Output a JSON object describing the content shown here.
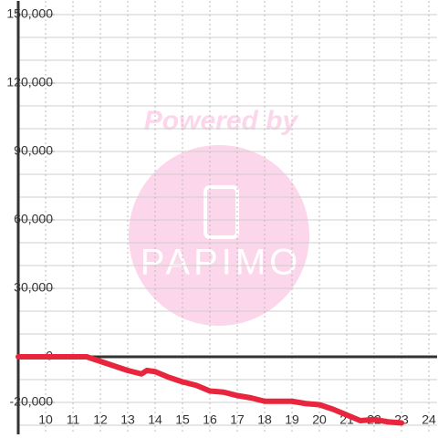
{
  "chart_data": {
    "type": "line",
    "watermark": {
      "title": "Powered by",
      "brand": "PAPIMO"
    },
    "x": [
      9,
      11.5,
      12,
      12.5,
      13,
      13.5,
      13.7,
      14,
      14.5,
      15,
      15.5,
      16,
      16.5,
      17,
      17.5,
      18,
      18.5,
      19,
      19.5,
      20,
      20.5,
      21,
      21.5,
      22,
      22.5,
      23
    ],
    "series": [
      {
        "color": "#e8253c",
        "values": [
          0,
          0,
          -2000,
          -4000,
          -6000,
          -7500,
          -6000,
          -6500,
          -9000,
          -11000,
          -12500,
          -15000,
          -15500,
          -17000,
          -18000,
          -19500,
          -19500,
          -19500,
          -20500,
          -21000,
          -23000,
          -25500,
          -28000,
          -27500,
          -28500,
          -29000
        ]
      }
    ],
    "xlim": [
      9,
      24.3
    ],
    "ylim": [
      -34000,
      156000
    ],
    "xticks": [
      10,
      11,
      12,
      13,
      14,
      15,
      16,
      17,
      18,
      19,
      20,
      21,
      22,
      23,
      24
    ],
    "yticks": [
      {
        "value": -20000,
        "label": "-20,000"
      },
      0,
      {
        "value": 30000,
        "label": "30,000"
      },
      {
        "value": 60000,
        "label": "60,000"
      },
      {
        "value": 90000,
        "label": "90,000"
      },
      {
        "value": 120000,
        "label": "120,000"
      },
      {
        "value": 150000,
        "label": "150,000"
      }
    ],
    "y_grid": [
      -30000,
      -20000,
      -10000,
      10000,
      20000,
      30000,
      40000,
      50000,
      60000,
      70000,
      80000,
      90000,
      100000,
      110000,
      120000,
      130000,
      140000,
      150000
    ],
    "grid": true
  }
}
